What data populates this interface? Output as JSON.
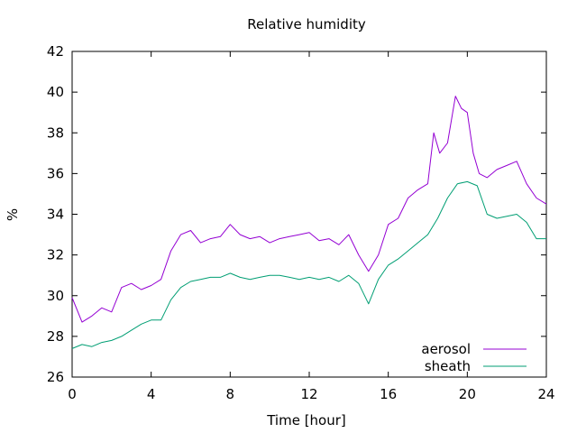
{
  "chart_data": {
    "type": "line",
    "title": "Relative humidity",
    "xlabel": "Time [hour]",
    "ylabel": "%",
    "xlim": [
      0,
      24
    ],
    "ylim": [
      26,
      42
    ],
    "xticks": [
      0,
      4,
      8,
      12,
      16,
      20,
      24
    ],
    "yticks": [
      26,
      28,
      30,
      32,
      34,
      36,
      38,
      40,
      42
    ],
    "grid": false,
    "legend": "bottom-right",
    "series": [
      {
        "name": "aerosol",
        "color": "#9400d3",
        "x": [
          0,
          0.5,
          1,
          1.5,
          2,
          2.5,
          3,
          3.5,
          4,
          4.5,
          5,
          5.5,
          6,
          6.5,
          7,
          7.5,
          8,
          8.5,
          9,
          9.5,
          10,
          10.5,
          11,
          11.5,
          12,
          12.5,
          13,
          13.5,
          14,
          14.5,
          15,
          15.5,
          16,
          16.5,
          17,
          17.5,
          18,
          18.3,
          18.6,
          19,
          19.4,
          19.7,
          20,
          20.3,
          20.6,
          21,
          21.5,
          22,
          22.5,
          23,
          23.5,
          24
        ],
        "y": [
          29.9,
          28.7,
          29.0,
          29.4,
          29.2,
          30.4,
          30.6,
          30.3,
          30.5,
          30.8,
          32.2,
          33.0,
          33.2,
          32.6,
          32.8,
          32.9,
          33.5,
          33.0,
          32.8,
          32.9,
          32.6,
          32.8,
          32.9,
          33.0,
          33.1,
          32.7,
          32.8,
          32.5,
          33.0,
          32.0,
          31.2,
          32.0,
          33.5,
          33.8,
          34.8,
          35.2,
          35.5,
          38.0,
          37.0,
          37.5,
          39.8,
          39.2,
          39.0,
          37.0,
          36.0,
          35.8,
          36.2,
          36.4,
          36.6,
          35.5,
          34.8,
          34.5
        ]
      },
      {
        "name": "sheath",
        "color": "#009e73",
        "x": [
          0,
          0.5,
          1,
          1.5,
          2,
          2.5,
          3,
          3.5,
          4,
          4.5,
          5,
          5.5,
          6,
          6.5,
          7,
          7.5,
          8,
          8.5,
          9,
          9.5,
          10,
          10.5,
          11,
          11.5,
          12,
          12.5,
          13,
          13.5,
          14,
          14.5,
          15,
          15.5,
          16,
          16.5,
          17,
          17.5,
          18,
          18.5,
          19,
          19.5,
          20,
          20.5,
          21,
          21.5,
          22,
          22.5,
          23,
          23.5,
          24
        ],
        "y": [
          27.4,
          27.6,
          27.5,
          27.7,
          27.8,
          28.0,
          28.3,
          28.6,
          28.8,
          28.8,
          29.8,
          30.4,
          30.7,
          30.8,
          30.9,
          30.9,
          31.1,
          30.9,
          30.8,
          30.9,
          31.0,
          31.0,
          30.9,
          30.8,
          30.9,
          30.8,
          30.9,
          30.7,
          31.0,
          30.6,
          29.6,
          30.8,
          31.5,
          31.8,
          32.2,
          32.6,
          33.0,
          33.8,
          34.8,
          35.5,
          35.6,
          35.4,
          34.0,
          33.8,
          33.9,
          34.0,
          33.6,
          32.8,
          32.8
        ]
      }
    ]
  }
}
